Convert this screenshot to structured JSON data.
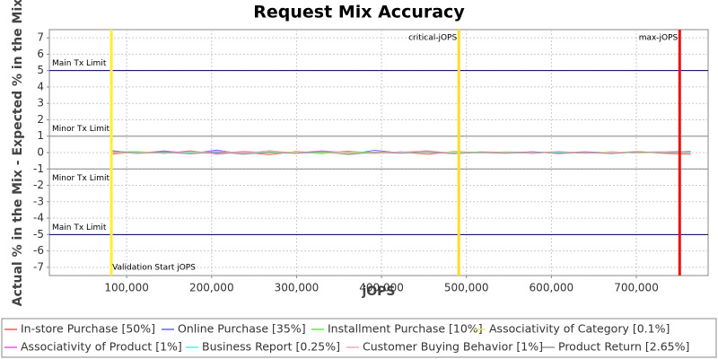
{
  "chart_data": {
    "type": "line",
    "title": "Request Mix Accuracy",
    "x_label": "jOPS",
    "y_label": "Actual % in the Mix - Expected % in the Mix",
    "x": [
      82000,
      113000,
      144000,
      175000,
      206000,
      237000,
      268000,
      299000,
      330000,
      361000,
      392000,
      423000,
      454000,
      485000,
      516000,
      547000,
      578000,
      609000,
      640000,
      671000,
      702000,
      733000,
      764000
    ],
    "series": [
      {
        "name": "In-store Purchase [50%]",
        "color": "#ff5555",
        "values": [
          -0.1,
          0.05,
          -0.05,
          0.1,
          -0.08,
          0.02,
          -0.12,
          0.06,
          -0.03,
          0.08,
          -0.05,
          0.04,
          -0.1,
          0.07,
          0.0,
          -0.04,
          0.05,
          -0.06,
          0.03,
          -0.02,
          0.06,
          -0.05,
          -0.1
        ]
      },
      {
        "name": "Online Purchase [35%]",
        "color": "#6666ff",
        "values": [
          0.12,
          -0.05,
          0.1,
          -0.06,
          0.15,
          -0.08,
          0.05,
          -0.02,
          0.08,
          -0.1,
          0.14,
          -0.03,
          0.06,
          -0.07,
          0.04,
          0.02,
          -0.05,
          0.07,
          -0.04,
          0.05,
          -0.03,
          0.04,
          0.06
        ]
      },
      {
        "name": "Installment Purchase [10%]",
        "color": "#55ee55",
        "values": [
          0.03,
          0.06,
          -0.04,
          0.05,
          0.02,
          -0.05,
          0.04,
          0.03,
          -0.06,
          0.05,
          0.02,
          -0.03,
          0.04,
          0.01,
          -0.02,
          0.05,
          0.0,
          0.03,
          -0.04,
          0.02,
          0.04,
          -0.02,
          0.03
        ]
      },
      {
        "name": "Associativity of Category [0.1%]",
        "color": "#eeee55",
        "values": [
          -0.05,
          0.02,
          0.04,
          -0.03,
          0.05,
          0.0,
          -0.04,
          0.03,
          0.01,
          -0.05,
          0.03,
          0.02,
          -0.02,
          0.04,
          -0.01,
          0.02,
          0.03,
          -0.03,
          0.01,
          0.04,
          -0.02,
          0.01,
          0.02
        ]
      },
      {
        "name": "Associativity of Product [1%]",
        "color": "#ee55ee",
        "values": [
          0.0,
          -0.03,
          0.05,
          0.02,
          -0.04,
          0.06,
          0.01,
          -0.02,
          0.1,
          0.0,
          -0.03,
          0.04,
          0.02,
          -0.05,
          0.03,
          0.0,
          0.04,
          -0.02,
          0.05,
          -0.03,
          0.02,
          0.05,
          0.0
        ]
      },
      {
        "name": "Business Report [0.25%]",
        "color": "#55eeee",
        "values": [
          0.02,
          0.0,
          -0.02,
          0.03,
          0.0,
          -0.02,
          0.02,
          -0.04,
          0.03,
          0.01,
          -0.02,
          0.0,
          0.03,
          -0.01,
          0.02,
          -0.03,
          0.01,
          0.02,
          0.0,
          -0.02,
          0.03,
          0.0,
          0.02
        ]
      },
      {
        "name": "Customer Buying Behavior [1%]",
        "color": "#ffaaaa",
        "values": [
          0.05,
          -0.06,
          0.02,
          -0.03,
          0.07,
          -0.05,
          0.12,
          -0.04,
          0.05,
          0.02,
          -0.06,
          0.03,
          0.12,
          -0.05,
          0.04,
          0.01,
          -0.03,
          0.08,
          -0.05,
          0.03,
          0.0,
          0.05,
          -0.04
        ]
      },
      {
        "name": "Product Return [2.65%]",
        "color": "#999999",
        "values": [
          0.08,
          -0.02,
          0.03,
          -0.08,
          0.04,
          -0.1,
          0.02,
          -0.05,
          0.06,
          -0.12,
          0.03,
          -0.04,
          0.05,
          -0.06,
          0.02,
          -0.03,
          0.04,
          -0.05,
          0.02,
          -0.07,
          0.05,
          -0.03,
          0.08
        ]
      }
    ],
    "xlim": [
      9000,
      784500
    ],
    "ylim": [
      -7.5,
      7.5
    ],
    "xticks": [
      {
        "value": 100000,
        "label": "100,000"
      },
      {
        "value": 200000,
        "label": "200,000"
      },
      {
        "value": 300000,
        "label": "300,000"
      },
      {
        "value": 400000,
        "label": "400,000"
      },
      {
        "value": 500000,
        "label": "500,000"
      },
      {
        "value": 600000,
        "label": "600,000"
      },
      {
        "value": 700000,
        "label": "700,000"
      }
    ],
    "yticks": [
      -7,
      -6,
      -5,
      -4,
      -3,
      -2,
      -1,
      0,
      1,
      2,
      3,
      4,
      5,
      6,
      7
    ],
    "grid": true,
    "limits": [
      {
        "label": "Main Tx Limit",
        "value": 5,
        "color": "#000055"
      },
      {
        "label": "Minor Tx Limit",
        "value": 1,
        "color": "#888888"
      },
      {
        "label": "Minor Tx Limit",
        "value": -1,
        "color": "#888888"
      },
      {
        "label": "Main Tx Limit",
        "value": -5,
        "color": "#000055"
      }
    ],
    "markers": [
      {
        "label": "Validation Start jOPS",
        "value": 82000,
        "color": "#ffee33"
      },
      {
        "label": "critical-jOPS",
        "value": 491000,
        "color": "#ffdd22"
      },
      {
        "label": "max-jOPS",
        "value": 751000,
        "color": "#ee1111"
      }
    ],
    "legend": "bottom"
  }
}
